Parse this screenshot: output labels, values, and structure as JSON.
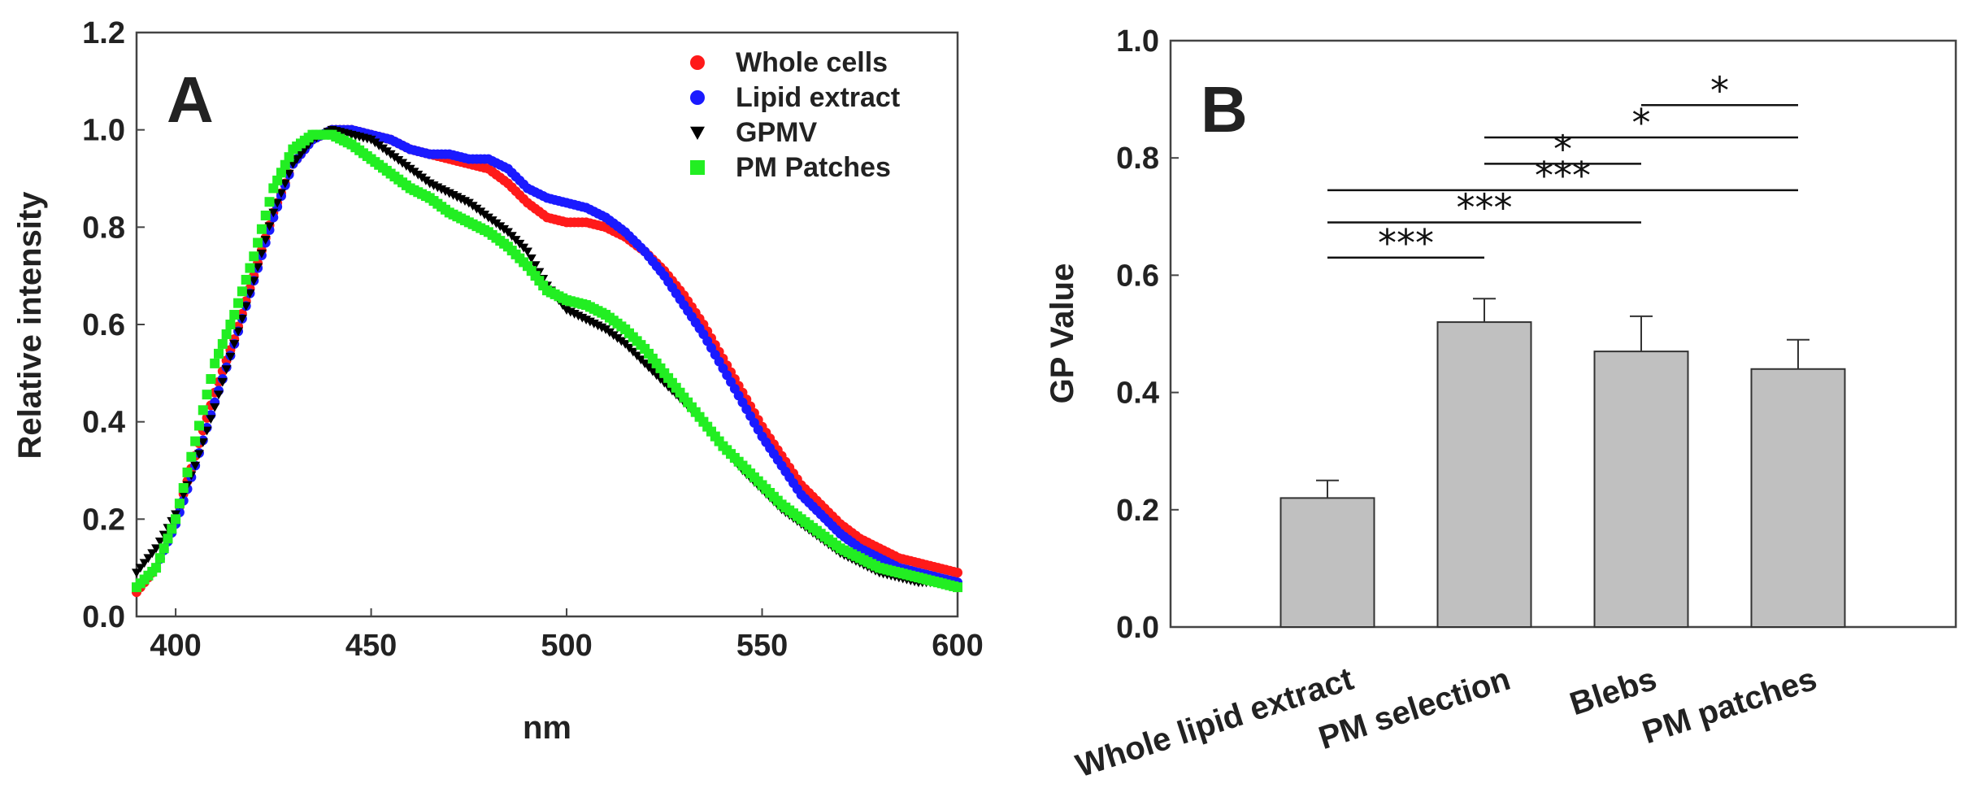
{
  "chart_data": [
    {
      "panel": "A",
      "type": "scatter",
      "title": "",
      "xlabel": "nm",
      "ylabel": "Relative intensity",
      "xlim": [
        390,
        600
      ],
      "ylim": [
        0.0,
        1.2
      ],
      "xticks": [
        "400",
        "450",
        "500",
        "550",
        "600"
      ],
      "xtick_values": [
        400,
        450,
        500,
        550,
        600
      ],
      "yticks": [
        "0.0",
        "0.2",
        "0.4",
        "0.6",
        "0.8",
        "1.0",
        "1.2"
      ],
      "ytick_values": [
        0.0,
        0.2,
        0.4,
        0.6,
        0.8,
        1.0,
        1.2
      ],
      "legend_position": "top-right",
      "series": [
        {
          "name": "Whole cells",
          "color": "#ff1a1a",
          "marker": "circle",
          "points": [
            [
              390,
              0.05
            ],
            [
              395,
              0.1
            ],
            [
              400,
              0.2
            ],
            [
              405,
              0.33
            ],
            [
              410,
              0.46
            ],
            [
              415,
              0.57
            ],
            [
              420,
              0.7
            ],
            [
              425,
              0.83
            ],
            [
              430,
              0.93
            ],
            [
              435,
              0.98
            ],
            [
              440,
              1.0
            ],
            [
              445,
              1.0
            ],
            [
              450,
              0.99
            ],
            [
              455,
              0.98
            ],
            [
              460,
              0.96
            ],
            [
              465,
              0.95
            ],
            [
              470,
              0.94
            ],
            [
              475,
              0.93
            ],
            [
              480,
              0.92
            ],
            [
              485,
              0.89
            ],
            [
              490,
              0.85
            ],
            [
              495,
              0.82
            ],
            [
              500,
              0.81
            ],
            [
              505,
              0.81
            ],
            [
              510,
              0.8
            ],
            [
              515,
              0.78
            ],
            [
              520,
              0.75
            ],
            [
              525,
              0.71
            ],
            [
              530,
              0.66
            ],
            [
              535,
              0.6
            ],
            [
              540,
              0.53
            ],
            [
              545,
              0.46
            ],
            [
              550,
              0.39
            ],
            [
              555,
              0.33
            ],
            [
              560,
              0.27
            ],
            [
              565,
              0.23
            ],
            [
              570,
              0.19
            ],
            [
              575,
              0.16
            ],
            [
              580,
              0.14
            ],
            [
              585,
              0.12
            ],
            [
              590,
              0.11
            ],
            [
              595,
              0.1
            ],
            [
              600,
              0.09
            ]
          ]
        },
        {
          "name": "Lipid extract",
          "color": "#1a1aff",
          "marker": "circle",
          "points": [
            [
              390,
              0.06
            ],
            [
              395,
              0.1
            ],
            [
              400,
              0.19
            ],
            [
              405,
              0.31
            ],
            [
              410,
              0.44
            ],
            [
              415,
              0.56
            ],
            [
              420,
              0.69
            ],
            [
              425,
              0.82
            ],
            [
              430,
              0.93
            ],
            [
              435,
              0.98
            ],
            [
              440,
              1.0
            ],
            [
              445,
              1.0
            ],
            [
              450,
              0.99
            ],
            [
              455,
              0.98
            ],
            [
              460,
              0.96
            ],
            [
              465,
              0.95
            ],
            [
              470,
              0.95
            ],
            [
              475,
              0.94
            ],
            [
              480,
              0.94
            ],
            [
              485,
              0.92
            ],
            [
              490,
              0.88
            ],
            [
              495,
              0.86
            ],
            [
              500,
              0.85
            ],
            [
              505,
              0.84
            ],
            [
              510,
              0.82
            ],
            [
              515,
              0.79
            ],
            [
              520,
              0.75
            ],
            [
              525,
              0.7
            ],
            [
              530,
              0.64
            ],
            [
              535,
              0.58
            ],
            [
              540,
              0.51
            ],
            [
              545,
              0.44
            ],
            [
              550,
              0.37
            ],
            [
              555,
              0.31
            ],
            [
              560,
              0.25
            ],
            [
              565,
              0.21
            ],
            [
              570,
              0.17
            ],
            [
              575,
              0.14
            ],
            [
              580,
              0.12
            ],
            [
              585,
              0.1
            ],
            [
              590,
              0.09
            ],
            [
              595,
              0.08
            ],
            [
              600,
              0.07
            ]
          ]
        },
        {
          "name": "GPMV",
          "color": "#000000",
          "marker": "triangle-down",
          "points": [
            [
              390,
              0.09
            ],
            [
              395,
              0.14
            ],
            [
              400,
              0.21
            ],
            [
              405,
              0.31
            ],
            [
              410,
              0.43
            ],
            [
              415,
              0.56
            ],
            [
              420,
              0.69
            ],
            [
              425,
              0.83
            ],
            [
              430,
              0.93
            ],
            [
              435,
              0.98
            ],
            [
              440,
              1.0
            ],
            [
              445,
              0.99
            ],
            [
              450,
              0.98
            ],
            [
              455,
              0.95
            ],
            [
              460,
              0.92
            ],
            [
              465,
              0.89
            ],
            [
              470,
              0.87
            ],
            [
              475,
              0.85
            ],
            [
              480,
              0.82
            ],
            [
              485,
              0.79
            ],
            [
              490,
              0.75
            ],
            [
              495,
              0.68
            ],
            [
              500,
              0.63
            ],
            [
              505,
              0.61
            ],
            [
              510,
              0.59
            ],
            [
              515,
              0.56
            ],
            [
              520,
              0.52
            ],
            [
              525,
              0.48
            ],
            [
              530,
              0.44
            ],
            [
              535,
              0.4
            ],
            [
              540,
              0.35
            ],
            [
              545,
              0.3
            ],
            [
              550,
              0.26
            ],
            [
              555,
              0.22
            ],
            [
              560,
              0.19
            ],
            [
              565,
              0.16
            ],
            [
              570,
              0.13
            ],
            [
              575,
              0.11
            ],
            [
              580,
              0.09
            ],
            [
              585,
              0.08
            ],
            [
              590,
              0.07
            ],
            [
              595,
              0.07
            ],
            [
              600,
              0.06
            ]
          ]
        },
        {
          "name": "PM Patches",
          "color": "#22ee22",
          "marker": "square",
          "points": [
            [
              390,
              0.06
            ],
            [
              395,
              0.1
            ],
            [
              400,
              0.2
            ],
            [
              405,
              0.36
            ],
            [
              410,
              0.52
            ],
            [
              415,
              0.62
            ],
            [
              420,
              0.74
            ],
            [
              425,
              0.88
            ],
            [
              430,
              0.96
            ],
            [
              435,
              0.99
            ],
            [
              440,
              0.99
            ],
            [
              445,
              0.97
            ],
            [
              450,
              0.94
            ],
            [
              455,
              0.91
            ],
            [
              460,
              0.88
            ],
            [
              465,
              0.86
            ],
            [
              470,
              0.83
            ],
            [
              475,
              0.81
            ],
            [
              480,
              0.79
            ],
            [
              485,
              0.76
            ],
            [
              490,
              0.72
            ],
            [
              495,
              0.67
            ],
            [
              500,
              0.65
            ],
            [
              505,
              0.64
            ],
            [
              510,
              0.62
            ],
            [
              515,
              0.59
            ],
            [
              520,
              0.55
            ],
            [
              525,
              0.5
            ],
            [
              530,
              0.45
            ],
            [
              535,
              0.4
            ],
            [
              540,
              0.35
            ],
            [
              545,
              0.31
            ],
            [
              550,
              0.27
            ],
            [
              555,
              0.23
            ],
            [
              560,
              0.2
            ],
            [
              565,
              0.17
            ],
            [
              570,
              0.14
            ],
            [
              575,
              0.12
            ],
            [
              580,
              0.1
            ],
            [
              585,
              0.09
            ],
            [
              590,
              0.08
            ],
            [
              595,
              0.07
            ],
            [
              600,
              0.06
            ]
          ]
        }
      ]
    },
    {
      "panel": "B",
      "type": "bar",
      "title": "",
      "xlabel": "",
      "ylabel": "GP Value",
      "ylim": [
        0.0,
        1.0
      ],
      "yticks": [
        "0.0",
        "0.2",
        "0.4",
        "0.6",
        "0.8",
        "1.0"
      ],
      "ytick_values": [
        0.0,
        0.2,
        0.4,
        0.6,
        0.8,
        1.0
      ],
      "categories": [
        "Whole lipid extract",
        "PM selection",
        "Blebs",
        "PM patches"
      ],
      "values": [
        0.22,
        0.52,
        0.47,
        0.44
      ],
      "errors": [
        0.03,
        0.04,
        0.06,
        0.05
      ],
      "bar_color": "#c0c0c0",
      "significance": [
        {
          "from": 0,
          "to": 1,
          "label": "***"
        },
        {
          "from": 0,
          "to": 2,
          "label": "***"
        },
        {
          "from": 0,
          "to": 3,
          "label": "***"
        },
        {
          "from": 1,
          "to": 2,
          "label": "*"
        },
        {
          "from": 1,
          "to": 3,
          "label": "*"
        },
        {
          "from": 2,
          "to": 3,
          "label": "*"
        }
      ]
    }
  ]
}
